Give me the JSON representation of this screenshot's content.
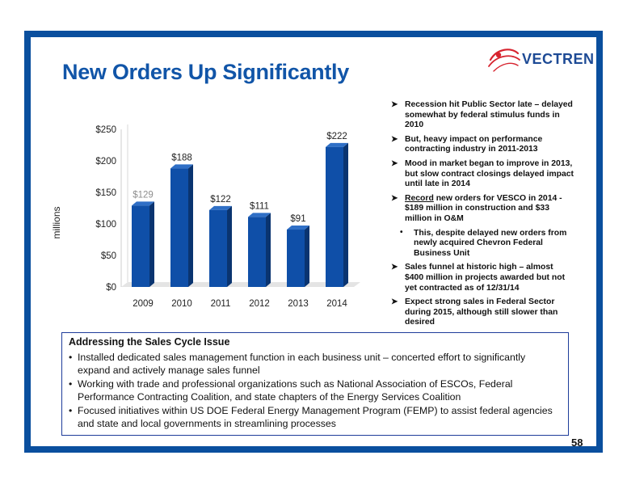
{
  "page": {
    "title": "New Orders Up Significantly",
    "logo_text": "VECTREN",
    "page_number": "58"
  },
  "chart_data": {
    "type": "bar",
    "categories": [
      "2009",
      "2010",
      "2011",
      "2012",
      "2013",
      "2014"
    ],
    "values": [
      129,
      188,
      122,
      111,
      91,
      222
    ],
    "data_labels": [
      "$129",
      "$188",
      "$122",
      "$111",
      "$91",
      "$222"
    ],
    "y_ticks": [
      "$0",
      "$50",
      "$100",
      "$150",
      "$200",
      "$250"
    ],
    "ylim": [
      0,
      250
    ],
    "ylabel": "millions",
    "xlabel": "",
    "grid": false,
    "legend": "none",
    "colors": {
      "bar_front": "#0f4fa8",
      "bar_side": "#0a3470",
      "bar_top": "#2f6fc6",
      "first_label": "#8e8e8e"
    }
  },
  "bullets": [
    {
      "kind": "main",
      "parts": [
        {
          "text": "Recession hit Public Sector late – delayed somewhat by federal stimulus funds in 2010"
        }
      ]
    },
    {
      "kind": "main",
      "parts": [
        {
          "text": "But, heavy impact on performance contracting industry in 2011-2013"
        }
      ]
    },
    {
      "kind": "main",
      "parts": [
        {
          "text": "Mood in market began to improve in 2013, but slow contract closings delayed impact until late in 2014"
        }
      ]
    },
    {
      "kind": "main",
      "parts": [
        {
          "text": "Record",
          "underline": true
        },
        {
          "text": " new orders for VESCO in 2014 - $189 million in construction and $33 million in O&M"
        }
      ]
    },
    {
      "kind": "sub",
      "parts": [
        {
          "text": "This, despite delayed new orders from newly acquired Chevron Federal Business Unit"
        }
      ]
    },
    {
      "kind": "main",
      "parts": [
        {
          "text": "Sales funnel at historic high – almost $400 million in projects awarded but not yet contracted as of 12/31/14"
        }
      ]
    },
    {
      "kind": "main",
      "parts": [
        {
          "text": "Expect strong sales in Federal Sector during 2015, although still slower than desired"
        }
      ]
    }
  ],
  "box": {
    "title": "Addressing the Sales Cycle Issue",
    "items": [
      "Installed dedicated sales management function in each business unit – concerted effort to significantly expand and actively manage sales funnel",
      "Working with trade and professional organizations such as National Association of ESCOs, Federal Performance Contracting Coalition, and state chapters of the Energy Services Coalition",
      "Focused initiatives within US DOE Federal Energy Management Program (FEMP) to assist federal agencies and state and local governments in streamlining processes"
    ]
  },
  "icons": {
    "logo_mark": "vectren-swoosh-logo",
    "main_bullet": "arrow-bullet",
    "sub_bullet": "dot-bullet"
  }
}
